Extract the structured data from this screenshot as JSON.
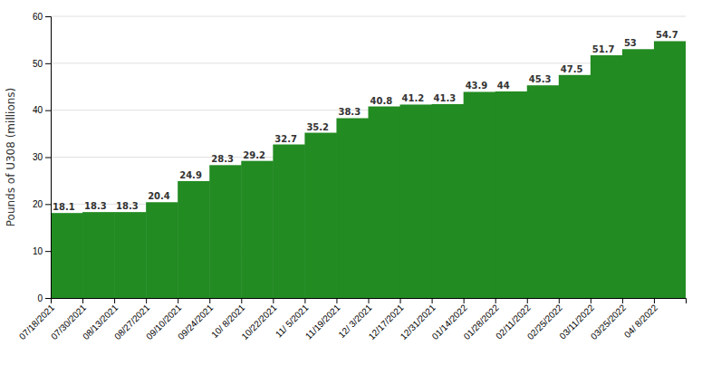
{
  "chart_data": {
    "type": "step",
    "ylabel": "Pounds of U308 (millions)",
    "categories": [
      "07/18/2021",
      "07/30/2021",
      "08/13/2021",
      "08/27/2021",
      "09/10/2021",
      "09/24/2021",
      "10/ 8/2021",
      "10/22/2021",
      "11/ 5/2021",
      "11/19/2021",
      "12/ 3/2021",
      "12/17/2021",
      "12/31/2021",
      "01/14/2022",
      "01/28/2022",
      "02/11/2022",
      "02/25/2022",
      "03/11/2022",
      "03/25/2022",
      "04/ 8/2022"
    ],
    "values": [
      18.1,
      18.3,
      18.3,
      20.4,
      24.9,
      28.3,
      29.2,
      32.7,
      35.2,
      38.3,
      40.8,
      41.2,
      41.3,
      43.9,
      44.0,
      45.3,
      47.5,
      51.7,
      53.0,
      54.7
    ],
    "color": "#228B22",
    "ylim": [
      0,
      60
    ],
    "yticks": [
      0,
      10,
      20,
      30,
      40,
      50,
      60
    ],
    "grid": true,
    "data_labels": true
  }
}
